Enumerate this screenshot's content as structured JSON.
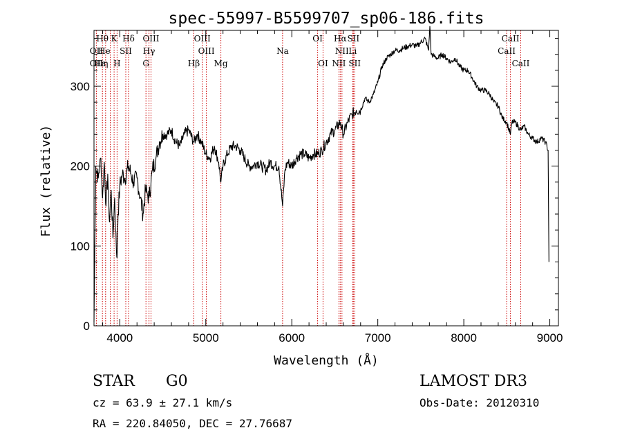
{
  "chart_data": {
    "type": "line",
    "title": "spec-55997-B5599707_sp06-186.fits",
    "xlabel": "Wavelength (Å)",
    "ylabel": "Flux (relative)",
    "xlim": [
      3700,
      9100
    ],
    "ylim": [
      0,
      370
    ],
    "xticks": [
      4000,
      5000,
      6000,
      7000,
      8000,
      9000
    ],
    "yticks": [
      0,
      100,
      200,
      300
    ],
    "series": [
      {
        "name": "flux",
        "x": [
          3700,
          3720,
          3750,
          3780,
          3800,
          3820,
          3840,
          3860,
          3880,
          3900,
          3920,
          3940,
          3960,
          3968,
          3980,
          4000,
          4030,
          4060,
          4102,
          4130,
          4160,
          4200,
          4240,
          4270,
          4300,
          4320,
          4340,
          4380,
          4420,
          4460,
          4500,
          4550,
          4600,
          4650,
          4700,
          4750,
          4800,
          4861,
          4900,
          4950,
          5000,
          5050,
          5100,
          5150,
          5175,
          5200,
          5250,
          5300,
          5350,
          5400,
          5450,
          5500,
          5550,
          5600,
          5650,
          5700,
          5750,
          5800,
          5850,
          5893,
          5920,
          5950,
          6000,
          6050,
          6100,
          6150,
          6200,
          6250,
          6300,
          6350,
          6400,
          6450,
          6500,
          6563,
          6600,
          6650,
          6700,
          6750,
          6800,
          6850,
          6900,
          6950,
          7000,
          7050,
          7100,
          7150,
          7200,
          7250,
          7300,
          7350,
          7400,
          7450,
          7500,
          7550,
          7590,
          7605,
          7620,
          7650,
          7700,
          7750,
          7800,
          7850,
          7900,
          7950,
          8000,
          8050,
          8100,
          8150,
          8200,
          8250,
          8300,
          8350,
          8400,
          8450,
          8498,
          8542,
          8560,
          8600,
          8662,
          8700,
          8750,
          8800,
          8850,
          8900,
          8950,
          8980,
          8990
        ],
        "y": [
          5,
          200,
          185,
          210,
          160,
          205,
          150,
          190,
          130,
          170,
          110,
          160,
          95,
          85,
          140,
          175,
          190,
          185,
          200,
          190,
          180,
          185,
          160,
          140,
          170,
          165,
          160,
          195,
          210,
          230,
          240,
          240,
          245,
          230,
          225,
          240,
          245,
          230,
          240,
          230,
          215,
          210,
          225,
          205,
          180,
          200,
          215,
          225,
          225,
          220,
          210,
          200,
          200,
          205,
          200,
          195,
          205,
          200,
          200,
          150,
          195,
          205,
          200,
          210,
          215,
          215,
          210,
          215,
          215,
          220,
          230,
          240,
          245,
          255,
          240,
          255,
          265,
          270,
          270,
          285,
          280,
          290,
          305,
          325,
          335,
          340,
          345,
          345,
          348,
          350,
          352,
          350,
          355,
          360,
          345,
          375,
          340,
          338,
          335,
          340,
          335,
          330,
          335,
          325,
          320,
          320,
          310,
          300,
          295,
          295,
          290,
          280,
          275,
          260,
          255,
          240,
          255,
          255,
          245,
          250,
          240,
          235,
          230,
          235,
          230,
          220,
          80
        ]
      }
    ],
    "annotations": [
      {
        "label": "Hθ",
        "x": 3798,
        "row": 1
      },
      {
        "label": "K",
        "x": 3934,
        "row": 1
      },
      {
        "label": "Hδ",
        "x": 4102,
        "row": 1
      },
      {
        "label": "OIII",
        "x": 4363,
        "row": 1
      },
      {
        "label": "OIII",
        "x": 4959,
        "row": 1
      },
      {
        "label": "OI",
        "x": 6300,
        "row": 1
      },
      {
        "label": "Hα",
        "x": 6563,
        "row": 1
      },
      {
        "label": "SII",
        "x": 6716,
        "row": 1
      },
      {
        "label": "CaII",
        "x": 8542,
        "row": 1
      },
      {
        "label": "OII",
        "x": 3727,
        "row": 2
      },
      {
        "label": "He",
        "x": 3820,
        "row": 2
      },
      {
        "label": "SII",
        "x": 4070,
        "row": 2
      },
      {
        "label": "Hγ",
        "x": 4340,
        "row": 2
      },
      {
        "label": "OIII",
        "x": 5007,
        "row": 2
      },
      {
        "label": "Na",
        "x": 5893,
        "row": 2
      },
      {
        "label": "NII",
        "x": 6583,
        "row": 2
      },
      {
        "label": "Li",
        "x": 6708,
        "row": 2
      },
      {
        "label": "CaII",
        "x": 8498,
        "row": 2
      },
      {
        "label": "OII",
        "x": 3727,
        "row": 3
      },
      {
        "label": "Hε",
        "x": 3770,
        "row": 3
      },
      {
        "label": "η",
        "x": 3835,
        "row": 3
      },
      {
        "label": "H",
        "x": 3968,
        "row": 3
      },
      {
        "label": "G",
        "x": 4304,
        "row": 3
      },
      {
        "label": "Hβ",
        "x": 4861,
        "row": 3
      },
      {
        "label": "Mg",
        "x": 5175,
        "row": 3
      },
      {
        "label": "OI",
        "x": 6363,
        "row": 3
      },
      {
        "label": "NII",
        "x": 6548,
        "row": 3
      },
      {
        "label": "SII",
        "x": 6731,
        "row": 3
      },
      {
        "label": "CaII",
        "x": 8662,
        "row": 3
      }
    ],
    "line_markers": [
      3727,
      3798,
      3835,
      3889,
      3934,
      3968,
      4070,
      4102,
      4304,
      4340,
      4363,
      4861,
      4959,
      5007,
      5175,
      5893,
      6300,
      6363,
      6548,
      6563,
      6583,
      6708,
      6716,
      6731,
      8498,
      8542,
      8662
    ],
    "marker_color": "#cc0000"
  },
  "info": {
    "object_class": "STAR",
    "subclass": "G0",
    "survey": "LAMOST DR3",
    "redshift": "cz = 63.9 ± 27.1 km/s",
    "obs_date": "Obs-Date: 20120310",
    "coords": "RA = 220.84050, DEC =  27.76687"
  }
}
